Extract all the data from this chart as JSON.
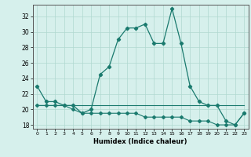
{
  "xlabel": "Humidex (Indice chaleur)",
  "x": [
    0,
    1,
    2,
    3,
    4,
    5,
    6,
    7,
    8,
    9,
    10,
    11,
    12,
    13,
    14,
    15,
    16,
    17,
    18,
    19,
    20,
    21,
    22,
    23
  ],
  "line1": [
    23,
    21,
    21,
    20.5,
    20.5,
    19.5,
    20,
    24.5,
    25.5,
    29,
    30.5,
    30.5,
    31,
    28.5,
    28.5,
    33,
    28.5,
    23,
    21,
    20.5,
    20.5,
    18.5,
    18,
    19.5
  ],
  "line2": [
    20.5,
    20.5,
    20.5,
    20.5,
    20.5,
    20.5,
    20.5,
    20.5,
    20.5,
    20.5,
    20.5,
    20.5,
    20.5,
    20.5,
    20.5,
    20.5,
    20.5,
    20.5,
    20.5,
    20.5,
    20.5,
    20.5,
    20.5,
    20.5
  ],
  "line3": [
    20.5,
    20.5,
    20.5,
    20.5,
    20,
    19.5,
    19.5,
    19.5,
    19.5,
    19.5,
    19.5,
    19.5,
    19,
    19,
    19,
    19,
    19,
    18.5,
    18.5,
    18.5,
    18,
    18,
    18,
    19.5
  ],
  "line_color": "#1a7a6e",
  "bg_color": "#d6f0ec",
  "grid_color": "#b0d8d0",
  "ylim": [
    17.5,
    33.5
  ],
  "yticks": [
    18,
    20,
    22,
    24,
    26,
    28,
    30,
    32
  ]
}
